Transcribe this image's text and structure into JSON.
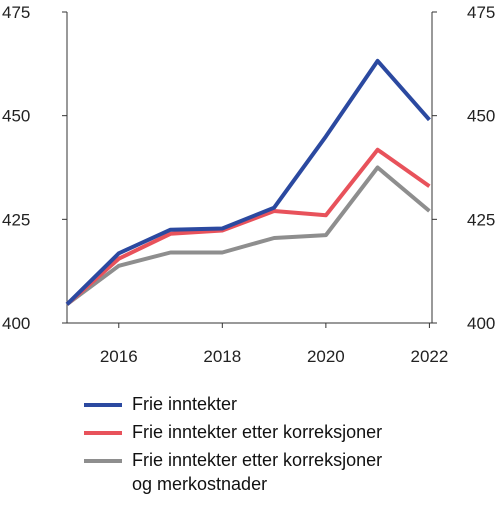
{
  "chart_data": {
    "type": "line",
    "title": "",
    "xlabel": "",
    "ylabel": "",
    "x": [
      2015,
      2016,
      2017,
      2018,
      2019,
      2020,
      2021,
      2022
    ],
    "x_ticks": [
      "2016",
      "2018",
      "2020",
      "2022"
    ],
    "y_ticks": [
      "400",
      "425",
      "450",
      "475"
    ],
    "ylim": [
      400,
      475
    ],
    "y_axis_both_sides": true,
    "grid": false,
    "legend_position": "bottom",
    "series": [
      {
        "name": "Frie inntekter",
        "color": "#2b49a0",
        "values": [
          404.5,
          416.8,
          422.5,
          422.8,
          427.8,
          445.0,
          463.2,
          449.0
        ]
      },
      {
        "name": "Frie inntekter etter korreksjoner",
        "color": "#e8525b",
        "values": [
          404.5,
          415.5,
          421.5,
          422.3,
          427.0,
          426.0,
          441.8,
          433.0
        ]
      },
      {
        "name": "Frie inntekter etter korreksjoner\nog merkostnader",
        "color": "#8e8e8e",
        "values": [
          404.5,
          413.8,
          417.0,
          417.0,
          420.5,
          421.2,
          437.5,
          427.0
        ]
      }
    ]
  }
}
